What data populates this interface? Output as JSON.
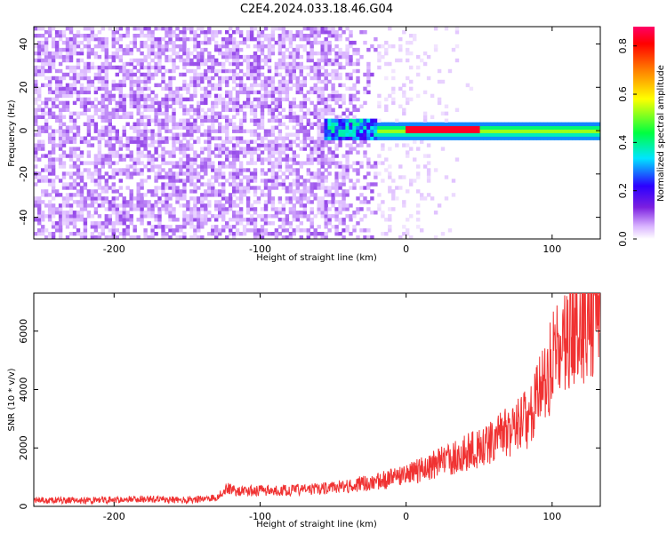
{
  "figure_title": "C2E4.2024.033.18.46.G04",
  "chart_data": [
    {
      "type": "heatmap",
      "xlabel": "Height of straight line (km)",
      "ylabel": "Frequency (Hz)",
      "xlim": [
        -255,
        133
      ],
      "ylim": [
        -50,
        48
      ],
      "xticks": [
        -200,
        -100,
        0,
        100
      ],
      "yticks": [
        -40,
        -20,
        0,
        20,
        40
      ],
      "colorbar": {
        "label": "Normalized spectral amplitude",
        "range": [
          0,
          0.88
        ],
        "ticks": [
          0.0,
          0.2,
          0.4,
          0.6,
          0.8
        ],
        "colormap": [
          "#ffffff",
          "#d9b3ff",
          "#7b1fe0",
          "#2b00ff",
          "#00e5ff",
          "#00ff40",
          "#ffff00",
          "#ff7a00",
          "#ff0000",
          "#ff0066"
        ]
      },
      "features": {
        "noise_region_x": [
          -255,
          -20
        ],
        "signal_band_frequency_hz": 0,
        "signal_band_x": [
          -20,
          133
        ],
        "peak_amplitude_x": [
          0,
          50
        ]
      }
    },
    {
      "type": "line",
      "xlabel": "Height of straight line (km)",
      "ylabel": "SNR (10 * v/v)",
      "xlim": [
        -255,
        133
      ],
      "ylim": [
        0,
        7300
      ],
      "xticks": [
        -200,
        -100,
        0,
        100
      ],
      "yticks": [
        0,
        2000,
        4000,
        6000
      ],
      "color": "#f03232",
      "series": [
        {
          "x": [
            -255,
            -220,
            -180,
            -150,
            -130,
            -122,
            -115,
            -100,
            -80,
            -60,
            -40,
            -20,
            0,
            20,
            40,
            60,
            75,
            85,
            95,
            105,
            115,
            125,
            133
          ],
          "y": [
            200,
            200,
            250,
            220,
            300,
            650,
            500,
            550,
            550,
            600,
            700,
            850,
            1050,
            1450,
            1800,
            2250,
            2700,
            3100,
            4300,
            5400,
            6000,
            6500,
            6800
          ]
        }
      ]
    }
  ]
}
